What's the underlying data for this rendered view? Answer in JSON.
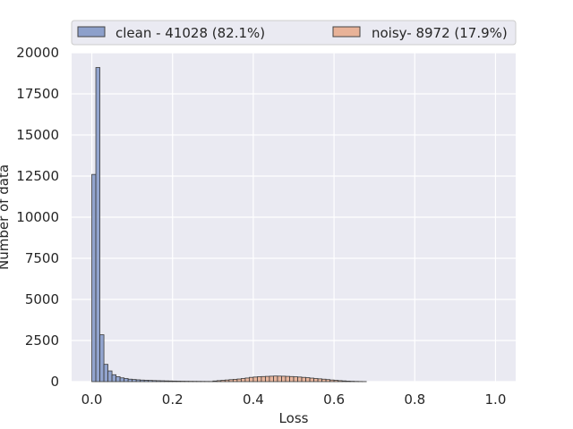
{
  "chart_data": {
    "type": "bar",
    "subtype": "histogram",
    "xlabel": "Loss",
    "ylabel": "Number of data",
    "xlim": [
      -0.05,
      1.05
    ],
    "ylim": [
      0,
      20000
    ],
    "xticks": [
      "0.0",
      "0.2",
      "0.4",
      "0.6",
      "0.8",
      "1.0"
    ],
    "xtick_values": [
      0.0,
      0.2,
      0.4,
      0.6,
      0.8,
      1.0
    ],
    "yticks": [
      "0",
      "2500",
      "5000",
      "7500",
      "10000",
      "12500",
      "15000",
      "17500",
      "20000"
    ],
    "ytick_values": [
      0,
      2500,
      5000,
      7500,
      10000,
      12500,
      15000,
      17500,
      20000
    ],
    "grid": true,
    "legend_position": "top",
    "bin_width": 0.01,
    "series": [
      {
        "name": "clean - 41028 (82.1%)",
        "color": "#8da0cb",
        "bins": [
          {
            "x": 0.0,
            "y": 12600
          },
          {
            "x": 0.01,
            "y": 19100
          },
          {
            "x": 0.02,
            "y": 2850
          },
          {
            "x": 0.03,
            "y": 1050
          },
          {
            "x": 0.04,
            "y": 650
          },
          {
            "x": 0.05,
            "y": 420
          },
          {
            "x": 0.06,
            "y": 300
          },
          {
            "x": 0.07,
            "y": 230
          },
          {
            "x": 0.08,
            "y": 190
          },
          {
            "x": 0.09,
            "y": 150
          },
          {
            "x": 0.1,
            "y": 130
          },
          {
            "x": 0.11,
            "y": 110
          },
          {
            "x": 0.12,
            "y": 95
          },
          {
            "x": 0.13,
            "y": 85
          },
          {
            "x": 0.14,
            "y": 75
          },
          {
            "x": 0.15,
            "y": 65
          },
          {
            "x": 0.16,
            "y": 58
          },
          {
            "x": 0.17,
            "y": 52
          },
          {
            "x": 0.18,
            "y": 45
          },
          {
            "x": 0.19,
            "y": 40
          },
          {
            "x": 0.2,
            "y": 35
          },
          {
            "x": 0.21,
            "y": 30
          },
          {
            "x": 0.22,
            "y": 26
          },
          {
            "x": 0.23,
            "y": 22
          },
          {
            "x": 0.24,
            "y": 20
          },
          {
            "x": 0.25,
            "y": 18
          },
          {
            "x": 0.26,
            "y": 16
          },
          {
            "x": 0.27,
            "y": 14
          },
          {
            "x": 0.28,
            "y": 12
          },
          {
            "x": 0.29,
            "y": 10
          }
        ]
      },
      {
        "name": "noisy- 8972 (17.9%)",
        "color": "#e8b298",
        "bins": [
          {
            "x": 0.3,
            "y": 40
          },
          {
            "x": 0.31,
            "y": 60
          },
          {
            "x": 0.32,
            "y": 80
          },
          {
            "x": 0.33,
            "y": 100
          },
          {
            "x": 0.34,
            "y": 120
          },
          {
            "x": 0.35,
            "y": 140
          },
          {
            "x": 0.36,
            "y": 160
          },
          {
            "x": 0.37,
            "y": 190
          },
          {
            "x": 0.38,
            "y": 220
          },
          {
            "x": 0.39,
            "y": 260
          },
          {
            "x": 0.4,
            "y": 280
          },
          {
            "x": 0.41,
            "y": 300
          },
          {
            "x": 0.42,
            "y": 310
          },
          {
            "x": 0.43,
            "y": 320
          },
          {
            "x": 0.44,
            "y": 330
          },
          {
            "x": 0.45,
            "y": 340
          },
          {
            "x": 0.46,
            "y": 335
          },
          {
            "x": 0.47,
            "y": 330
          },
          {
            "x": 0.48,
            "y": 320
          },
          {
            "x": 0.49,
            "y": 310
          },
          {
            "x": 0.5,
            "y": 295
          },
          {
            "x": 0.51,
            "y": 280
          },
          {
            "x": 0.52,
            "y": 260
          },
          {
            "x": 0.53,
            "y": 240
          },
          {
            "x": 0.54,
            "y": 215
          },
          {
            "x": 0.55,
            "y": 190
          },
          {
            "x": 0.56,
            "y": 170
          },
          {
            "x": 0.57,
            "y": 150
          },
          {
            "x": 0.58,
            "y": 125
          },
          {
            "x": 0.59,
            "y": 100
          },
          {
            "x": 0.6,
            "y": 80
          },
          {
            "x": 0.61,
            "y": 60
          },
          {
            "x": 0.62,
            "y": 45
          },
          {
            "x": 0.63,
            "y": 32
          },
          {
            "x": 0.64,
            "y": 22
          },
          {
            "x": 0.65,
            "y": 14
          },
          {
            "x": 0.66,
            "y": 9
          },
          {
            "x": 0.67,
            "y": 5
          }
        ]
      }
    ]
  }
}
